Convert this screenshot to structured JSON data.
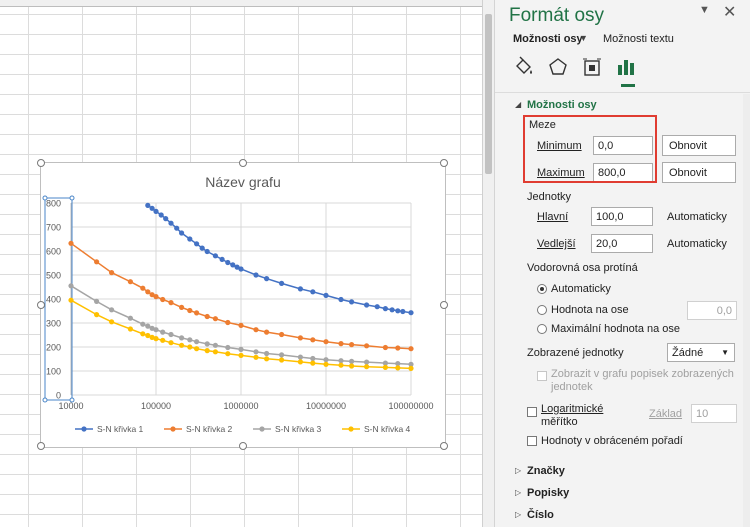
{
  "pane": {
    "title": "Formát osy",
    "tab_axis_options": "Možnosti osy",
    "tab_text_options": "Možnosti textu",
    "icons": [
      "fill-line-icon",
      "effects-pentagon-icon",
      "size-properties-icon",
      "axis-options-bar-chart-icon"
    ],
    "section_axis_options": "Možnosti osy",
    "bounds_label": "Meze",
    "minimum_label": "Minimum",
    "minimum_value": "0,0",
    "maximum_label": "Maximum",
    "maximum_value": "800,0",
    "reset_label": "Obnovit",
    "units_label": "Jednotky",
    "major_label": "Hlavní",
    "major_value": "100,0",
    "minor_label": "Vedlejší",
    "minor_value": "20,0",
    "auto_label": "Automaticky",
    "crosses_label": "Vodorovná osa protíná",
    "crosses_auto": "Automaticky",
    "crosses_value_label": "Hodnota na ose",
    "crosses_value": "0,0",
    "crosses_max": "Maximální hodnota na ose",
    "display_units_label": "Zobrazené jednotky",
    "display_units_value": "Žádné",
    "show_units_label_line1": "Zobrazit v grafu popisek zobrazených",
    "show_units_label_line2": "jednotek",
    "log_scale_line1": "Logaritmické",
    "log_scale_line2": "měřítko",
    "base_label": "Základ",
    "base_value": "10",
    "reverse_order": "Hodnoty v obráceném pořadí",
    "section_marks": "Značky",
    "section_labels": "Popisky",
    "section_number": "Číslo"
  },
  "chart_data": {
    "type": "scatter",
    "title": "Název grafu",
    "xscale": "log",
    "xlim": [
      10000,
      100000000
    ],
    "ylim": [
      0,
      800
    ],
    "x_ticks": [
      "10000",
      "100000",
      "1000000",
      "10000000",
      "100000000"
    ],
    "y_ticks": [
      "0",
      "100",
      "200",
      "300",
      "400",
      "500",
      "600",
      "700",
      "800"
    ],
    "grid": true,
    "legend_position": "bottom",
    "series": [
      {
        "name": "S-N křivka 1",
        "color": "#4472c4",
        "x": [
          80000,
          90000,
          100000,
          115000,
          130000,
          150000,
          175000,
          200000,
          250000,
          300000,
          350000,
          400000,
          500000,
          600000,
          700000,
          800000,
          900000,
          1000000,
          1500000,
          2000000,
          3000000,
          5000000,
          7000000,
          10000000,
          15000000,
          20000000,
          30000000,
          40000000,
          50000000,
          60000000,
          70000000,
          80000000,
          100000000
        ],
        "y": [
          790,
          778,
          765,
          750,
          735,
          716,
          695,
          675,
          650,
          630,
          612,
          598,
          580,
          565,
          552,
          542,
          533,
          525,
          500,
          485,
          465,
          442,
          430,
          415,
          398,
          388,
          375,
          368,
          360,
          355,
          351,
          348,
          343
        ]
      },
      {
        "name": "S-N křivka 2",
        "color": "#ed7d31",
        "x": [
          10000,
          20000,
          30000,
          50000,
          70000,
          80000,
          90000,
          100000,
          120000,
          150000,
          200000,
          250000,
          300000,
          400000,
          500000,
          700000,
          1000000,
          1500000,
          2000000,
          3000000,
          5000000,
          7000000,
          10000000,
          15000000,
          20000000,
          30000000,
          50000000,
          70000000,
          100000000
        ],
        "y": [
          632,
          555,
          510,
          472,
          445,
          430,
          418,
          410,
          398,
          385,
          365,
          352,
          342,
          327,
          318,
          302,
          290,
          272,
          262,
          252,
          238,
          230,
          222,
          214,
          210,
          205,
          198,
          196,
          193
        ]
      },
      {
        "name": "S-N křivka 3",
        "color": "#a5a5a5",
        "x": [
          10000,
          20000,
          30000,
          50000,
          70000,
          80000,
          90000,
          100000,
          120000,
          150000,
          200000,
          250000,
          300000,
          400000,
          500000,
          700000,
          1000000,
          1500000,
          2000000,
          3000000,
          5000000,
          7000000,
          10000000,
          15000000,
          20000000,
          30000000,
          50000000,
          70000000,
          100000000
        ],
        "y": [
          455,
          390,
          355,
          320,
          295,
          287,
          278,
          272,
          262,
          252,
          238,
          230,
          222,
          213,
          207,
          198,
          190,
          180,
          173,
          167,
          158,
          152,
          147,
          143,
          140,
          137,
          133,
          131,
          128
        ]
      },
      {
        "name": "S-N křivka 4",
        "color": "#ffc000",
        "x": [
          10000,
          20000,
          30000,
          50000,
          70000,
          80000,
          90000,
          100000,
          120000,
          150000,
          200000,
          250000,
          300000,
          400000,
          500000,
          700000,
          1000000,
          1500000,
          2000000,
          3000000,
          5000000,
          7000000,
          10000000,
          15000000,
          20000000,
          30000000,
          50000000,
          70000000,
          100000000
        ],
        "y": [
          395,
          335,
          305,
          275,
          255,
          248,
          240,
          235,
          228,
          218,
          207,
          200,
          193,
          185,
          180,
          172,
          165,
          157,
          151,
          146,
          138,
          133,
          128,
          124,
          121,
          118,
          115,
          113,
          111
        ]
      }
    ]
  }
}
